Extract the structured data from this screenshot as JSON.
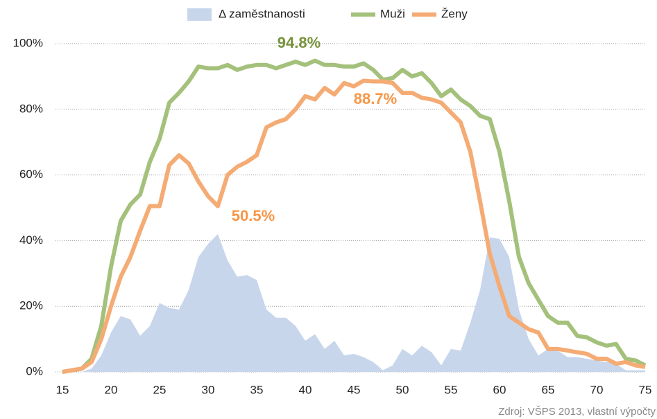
{
  "chart_data": {
    "type": "line",
    "x": [
      15,
      16,
      17,
      18,
      19,
      20,
      21,
      22,
      23,
      24,
      25,
      26,
      27,
      28,
      29,
      30,
      31,
      32,
      33,
      34,
      35,
      36,
      37,
      38,
      39,
      40,
      41,
      42,
      43,
      44,
      45,
      46,
      47,
      48,
      49,
      50,
      51,
      52,
      53,
      54,
      55,
      56,
      57,
      58,
      59,
      60,
      61,
      62,
      63,
      64,
      65,
      66,
      67,
      68,
      69,
      70,
      71,
      72,
      73,
      74,
      75
    ],
    "series": [
      {
        "name": "Δ zaměstnanosti",
        "kind": "area",
        "color": "#c8d6ec",
        "values": [
          0,
          0,
          0,
          1,
          5,
          12,
          17,
          16,
          11,
          14,
          21,
          19.5,
          19,
          25,
          35,
          39,
          42,
          34,
          29,
          29.5,
          28,
          19,
          16.5,
          16.5,
          14,
          9.5,
          11.5,
          7,
          9.5,
          5,
          5.5,
          4.5,
          3,
          0.5,
          2,
          7,
          5,
          8,
          6,
          2,
          7,
          6.5,
          15,
          25,
          41,
          40.5,
          35,
          19,
          10,
          5,
          7,
          6.5,
          4.5,
          4.5,
          4,
          3.5,
          3,
          2.5,
          0.5,
          0.5,
          0.5
        ]
      },
      {
        "name": "Muži",
        "kind": "line",
        "color": "#a4c17c",
        "values": [
          0,
          0.5,
          1,
          4,
          14,
          32,
          46,
          51,
          54,
          64,
          71,
          82,
          85,
          88.5,
          93,
          92.5,
          92.5,
          93.5,
          92,
          93,
          93.5,
          93.5,
          92.5,
          93.5,
          94.5,
          93.5,
          94.8,
          93.5,
          93.5,
          93,
          93,
          94,
          92,
          89,
          89.5,
          92,
          90,
          91,
          88,
          84,
          86,
          83,
          81,
          78,
          77,
          67,
          52,
          35,
          27,
          22,
          17,
          15,
          15,
          11,
          10.5,
          9,
          8,
          8.5,
          4,
          3.5,
          2
        ]
      },
      {
        "name": "Ženy",
        "kind": "line",
        "color": "#f4ab74",
        "values": [
          0,
          0.5,
          1,
          3,
          10,
          20,
          29,
          35,
          43,
          50.5,
          50.5,
          63,
          66,
          63.5,
          58,
          53.5,
          50.5,
          60,
          62.5,
          64,
          66,
          74.5,
          76,
          77,
          80,
          84,
          83,
          86.5,
          84.5,
          88,
          87,
          88.7,
          88.5,
          88.5,
          88,
          85,
          85,
          83.5,
          83,
          82,
          79,
          76,
          67,
          52,
          36,
          26,
          17,
          15,
          13,
          12,
          7,
          7,
          6.5,
          6,
          5.5,
          4,
          4,
          2.5,
          3,
          2,
          1.5
        ]
      }
    ],
    "xlim": [
      15,
      75
    ],
    "xticks": [
      15,
      20,
      25,
      30,
      35,
      40,
      45,
      50,
      55,
      60,
      65,
      70,
      75
    ],
    "ylim": [
      0,
      100
    ],
    "yticks": [
      {
        "value": 0,
        "label": "0%"
      },
      {
        "value": 20,
        "label": "20%"
      },
      {
        "value": 40,
        "label": "40%"
      },
      {
        "value": 60,
        "label": "60%"
      },
      {
        "value": 80,
        "label": "80%"
      },
      {
        "value": 100,
        "label": "100%"
      }
    ],
    "grid": true,
    "legend": "top",
    "annotations": [
      {
        "text": "94.8%",
        "color": "#77933c"
      },
      {
        "text": "88.7%",
        "color": "#f79646"
      },
      {
        "text": "50.5%",
        "color": "#f79646"
      }
    ],
    "source": "Zdroj: VŠPS 2013, vlastní výpočty"
  }
}
